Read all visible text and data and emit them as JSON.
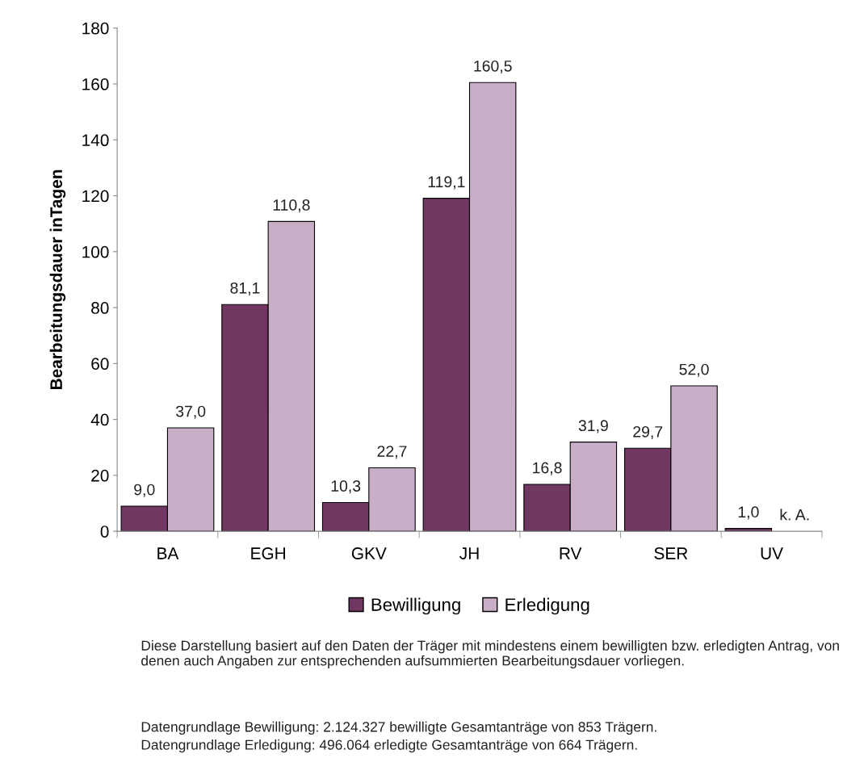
{
  "chart_data": {
    "type": "bar",
    "ylabel": "Bearbeitungsdauer inTagen",
    "categories": [
      "BA",
      "EGH",
      "GKV",
      "JH",
      "RV",
      "SER",
      "UV"
    ],
    "series": [
      {
        "name": "Bewilligung",
        "color": "#713763",
        "values": [
          9.0,
          81.1,
          10.3,
          119.1,
          16.8,
          29.7,
          1.0
        ],
        "value_labels": [
          "9,0",
          "81,1",
          "10,3",
          "119,1",
          "16,8",
          "29,7",
          "1,0"
        ]
      },
      {
        "name": "Erledigung",
        "color": "#c8aec6",
        "values": [
          37.0,
          110.8,
          22.7,
          160.5,
          31.9,
          52.0,
          null
        ],
        "value_labels": [
          "37,0",
          "110,8",
          "22,7",
          "160,5",
          "31,9",
          "52,0",
          "k. A."
        ]
      }
    ],
    "ylim": [
      0,
      180
    ],
    "yticks": [
      0,
      20,
      40,
      60,
      80,
      100,
      120,
      140,
      160,
      180
    ],
    "grid": false,
    "legend": "bottom",
    "annotations": [
      "Diese Darstellung basiert auf den Daten der Träger mit mindestens einem bewilligten bzw. erledigten Antrag, von denen auch Angaben zur entsprechenden aufsummierten Bearbeitungsdauer vorliegen.",
      "Datengrundlage Bewilligung: 2.124.327 bewilligte Gesamtanträge von 853 Trägern.",
      "Datengrundlage Erledigung: 496.064 erledigte Gesamtanträge von 664 Trägern."
    ]
  }
}
